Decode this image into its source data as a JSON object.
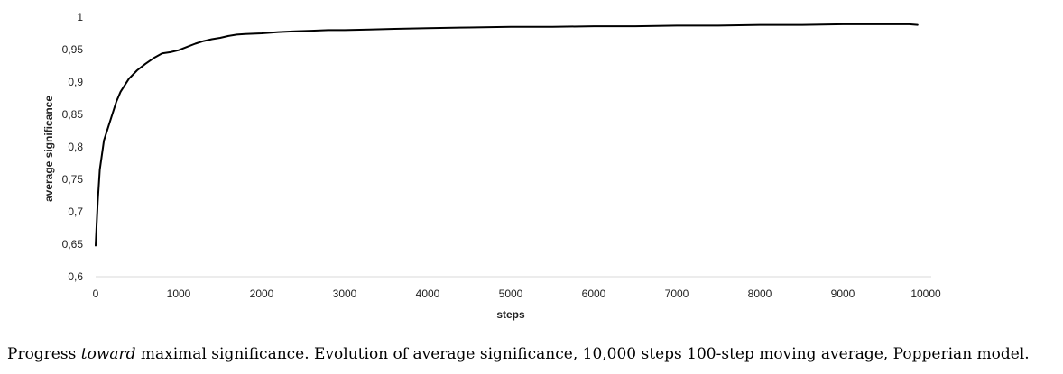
{
  "chart_data": {
    "type": "line",
    "xlabel": "steps",
    "ylabel": "average significance",
    "xlim": [
      0,
      10000
    ],
    "ylim": [
      0.6,
      1
    ],
    "x_ticks": [
      0,
      1000,
      2000,
      3000,
      4000,
      5000,
      6000,
      7000,
      8000,
      9000,
      10000
    ],
    "x_tick_labels": [
      "0",
      "1000",
      "2000",
      "3000",
      "4000",
      "5000",
      "6000",
      "7000",
      "8000",
      "9000",
      "10000"
    ],
    "y_ticks": [
      0.6,
      0.65,
      0.7,
      0.75,
      0.8,
      0.85,
      0.9,
      0.95,
      1
    ],
    "y_tick_labels": [
      "0,6",
      "0,65",
      "0,7",
      "0,75",
      "0,8",
      "0,85",
      "0,9",
      "0,95",
      "1"
    ],
    "grid": false,
    "legend": "none",
    "line_color": "#000000",
    "series": [
      {
        "x": [
          0,
          25,
          50,
          100,
          150,
          200,
          250,
          300,
          400,
          500,
          600,
          700,
          800,
          900,
          1000,
          1100,
          1200,
          1300,
          1400,
          1500,
          1600,
          1700,
          1800,
          2000,
          2200,
          2400,
          2600,
          2800,
          3000,
          3300,
          3600,
          4000,
          4500,
          5000,
          5500,
          6000,
          6500,
          7000,
          7500,
          8000,
          8500,
          9000,
          9500,
          9800,
          9900
        ],
        "y": [
          0.648,
          0.715,
          0.765,
          0.81,
          0.83,
          0.85,
          0.87,
          0.885,
          0.905,
          0.918,
          0.928,
          0.937,
          0.944,
          0.946,
          0.949,
          0.954,
          0.959,
          0.963,
          0.966,
          0.968,
          0.971,
          0.973,
          0.974,
          0.975,
          0.977,
          0.978,
          0.979,
          0.98,
          0.98,
          0.981,
          0.982,
          0.983,
          0.984,
          0.985,
          0.985,
          0.986,
          0.986,
          0.987,
          0.987,
          0.988,
          0.988,
          0.989,
          0.989,
          0.989,
          0.988
        ]
      }
    ]
  },
  "caption": {
    "before": "Progress ",
    "emphasis": "toward",
    "after": " maximal significance. Evolution of average significance, 10,000 steps 100-step moving average, Popperian model."
  }
}
